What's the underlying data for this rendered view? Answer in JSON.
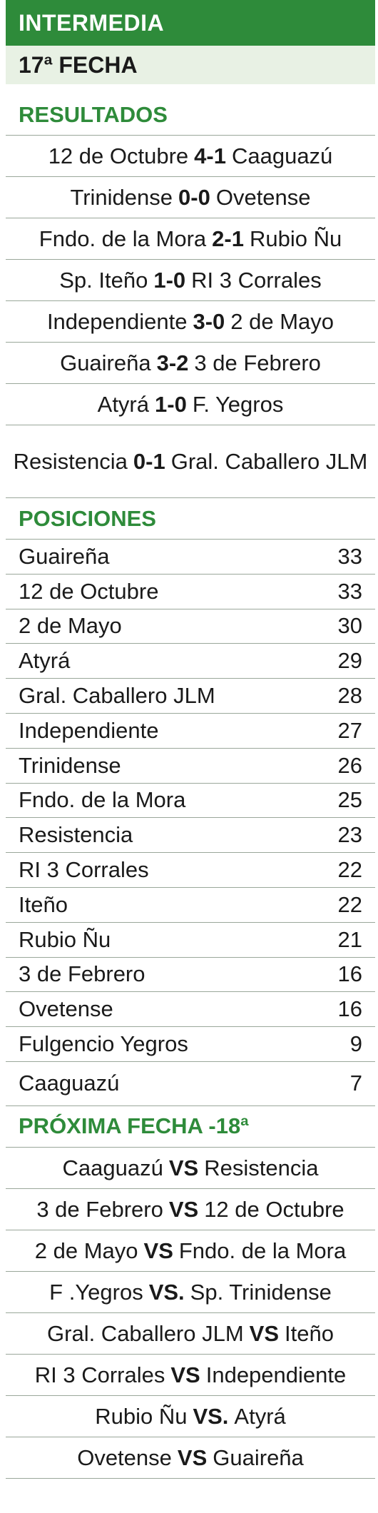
{
  "header": {
    "title": "INTERMEDIA",
    "round": "17ª FECHA"
  },
  "results": {
    "title": "RESULTADOS",
    "matches": [
      {
        "home": "12 de Octubre",
        "score": "4-1",
        "away": "Caaguazú"
      },
      {
        "home": "Trinidense",
        "score": "0-0",
        "away": "Ovetense"
      },
      {
        "home": "Fndo. de la Mora",
        "score": "2-1",
        "away": "Rubio Ñu"
      },
      {
        "home": "Sp. Iteño",
        "score": "1-0",
        "away": "RI 3 Corrales"
      },
      {
        "home": "Independiente",
        "score": "3-0",
        "away": "2 de Mayo"
      },
      {
        "home": "Guaireña",
        "score": "3-2",
        "away": "3 de Febrero"
      },
      {
        "home": "Atyrá",
        "score": "1-0",
        "away": "F. Yegros"
      },
      {
        "home": "Resistencia",
        "score": "0-1",
        "away": "Gral. Caballero JLM"
      }
    ]
  },
  "standings": {
    "title": "POSICIONES",
    "rows": [
      {
        "team": "Guaireña",
        "pts": "33"
      },
      {
        "team": "12 de Octubre",
        "pts": "33"
      },
      {
        "team": "2 de Mayo",
        "pts": "30"
      },
      {
        "team": "Atyrá",
        "pts": "29"
      },
      {
        "team": "Gral. Caballero JLM",
        "pts": "28"
      },
      {
        "team": "Independiente",
        "pts": "27"
      },
      {
        "team": "Trinidense",
        "pts": "26"
      },
      {
        "team": "Fndo. de la Mora",
        "pts": "25"
      },
      {
        "team": "Resistencia",
        "pts": "23"
      },
      {
        "team": "RI 3 Corrales",
        "pts": "22"
      },
      {
        "team": "Iteño",
        "pts": "22"
      },
      {
        "team": "Rubio Ñu",
        "pts": "21"
      },
      {
        "team": "3 de Febrero",
        "pts": "16"
      },
      {
        "team": "Ovetense",
        "pts": "16"
      },
      {
        "team": "Fulgencio Yegros",
        "pts": "9"
      },
      {
        "team": "Caaguazú",
        "pts": "7"
      }
    ]
  },
  "next": {
    "title": "PRÓXIMA FECHA -18ª",
    "matches": [
      {
        "home": "Caaguazú",
        "vs": "VS",
        "away": "Resistencia"
      },
      {
        "home": "3 de Febrero",
        "vs": "VS",
        "away": "12 de Octubre"
      },
      {
        "home": "2 de Mayo",
        "vs": "VS",
        "away": "Fndo. de la Mora"
      },
      {
        "home": "F .Yegros",
        "vs": "VS.",
        "away": "Sp. Trinidense"
      },
      {
        "home": "Gral. Caballero JLM",
        "vs": "VS",
        "away": "Iteño"
      },
      {
        "home": "RI 3 Corrales",
        "vs": "VS",
        "away": "Independiente"
      },
      {
        "home": "Rubio Ñu",
        "vs": "VS.",
        "away": "Atyrá"
      },
      {
        "home": "Ovetense",
        "vs": "VS",
        "away": "Guaireña"
      }
    ]
  },
  "colors": {
    "accent": "#2e8b3a",
    "sub_bg": "#e8f1e4",
    "rule": "#9aa79a"
  }
}
